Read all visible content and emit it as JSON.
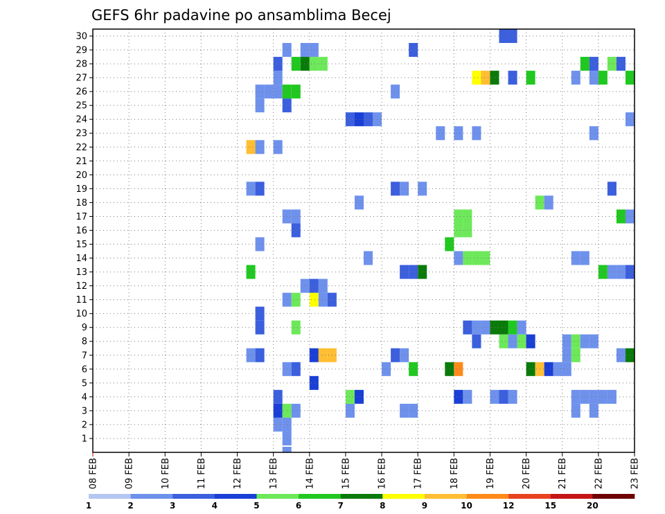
{
  "chart_data": {
    "type": "heatmap",
    "title": "GEFS 6hr padavine po ansamblima Becej",
    "xlabel": "",
    "ylabel": "",
    "x_ticks": [
      "08 FEB",
      "09 FEB",
      "10 FEB",
      "11 FEB",
      "12 FEB",
      "13 FEB",
      "14 FEB",
      "15 FEB",
      "16 FEB",
      "17 FEB",
      "18 FEB",
      "19 FEB",
      "20 FEB",
      "21 FEB",
      "22 FEB",
      "23 FEB"
    ],
    "x_range_days": [
      0,
      15
    ],
    "y_ticks": [
      "1",
      "2",
      "3",
      "4",
      "5",
      "6",
      "7",
      "8",
      "9",
      "10",
      "11",
      "12",
      "13",
      "14",
      "15",
      "16",
      "17",
      "18",
      "19",
      "20",
      "21",
      "22",
      "23",
      "24",
      "25",
      "26",
      "27",
      "28",
      "29",
      "30"
    ],
    "y_range": [
      0,
      30
    ],
    "grid": true,
    "legend": "bottom",
    "colorbar": {
      "colors": [
        "#b4c6f2",
        "#6e91ec",
        "#3b5fdd",
        "#1a3fd6",
        "#6de85a",
        "#20c820",
        "#0a7a0a",
        "#ffff00",
        "#ffbe33",
        "#ff8a1a",
        "#e8421e",
        "#c41616",
        "#6e0000"
      ],
      "labels": [
        "1",
        "2",
        "3",
        "4",
        "5",
        "6",
        "7",
        "8",
        "9",
        "10",
        "12",
        "15",
        "20"
      ]
    },
    "cells": [
      [
        5.25,
        0,
        1
      ],
      [
        5.0,
        1,
        1
      ],
      [
        5.25,
        1,
        1
      ],
      [
        5.0,
        2,
        3
      ],
      [
        5.25,
        2,
        4
      ],
      [
        5.5,
        2,
        1
      ],
      [
        7.0,
        2,
        1
      ],
      [
        8.5,
        2,
        1
      ],
      [
        8.75,
        2,
        1
      ],
      [
        5.0,
        3,
        2
      ],
      [
        7.0,
        3,
        4
      ],
      [
        7.25,
        3,
        3
      ],
      [
        10.0,
        3,
        3
      ],
      [
        10.25,
        3,
        1
      ],
      [
        11.0,
        3,
        1
      ],
      [
        11.25,
        3,
        2
      ],
      [
        11.5,
        3,
        1
      ],
      [
        13.25,
        3,
        1
      ],
      [
        13.5,
        3,
        1
      ],
      [
        13.75,
        3,
        1
      ],
      [
        14.0,
        3,
        1
      ],
      [
        14.25,
        3,
        1
      ],
      [
        13.25,
        2,
        1
      ],
      [
        13.75,
        2,
        1
      ],
      [
        6.0,
        4,
        3
      ],
      [
        5.25,
        5,
        1
      ],
      [
        5.5,
        5,
        2
      ],
      [
        8.0,
        5,
        1
      ],
      [
        8.75,
        5,
        5
      ],
      [
        9.75,
        5,
        6
      ],
      [
        10.0,
        5,
        9
      ],
      [
        12.0,
        5,
        6
      ],
      [
        12.25,
        5,
        8
      ],
      [
        12.5,
        5,
        3
      ],
      [
        12.75,
        5,
        1
      ],
      [
        13.0,
        5,
        1
      ],
      [
        4.25,
        6,
        1
      ],
      [
        4.5,
        6,
        2
      ],
      [
        6.0,
        6,
        3
      ],
      [
        6.25,
        6,
        8
      ],
      [
        6.5,
        6,
        8
      ],
      [
        8.25,
        6,
        2
      ],
      [
        8.5,
        6,
        1
      ],
      [
        13.0,
        6,
        1
      ],
      [
        13.25,
        6,
        4
      ],
      [
        14.5,
        6,
        1
      ],
      [
        14.75,
        6,
        6
      ],
      [
        10.5,
        7,
        2
      ],
      [
        11.25,
        7,
        4
      ],
      [
        11.5,
        7,
        1
      ],
      [
        11.75,
        7,
        4
      ],
      [
        12.0,
        7,
        3
      ],
      [
        13.0,
        7,
        1
      ],
      [
        13.25,
        7,
        4
      ],
      [
        13.5,
        7,
        1
      ],
      [
        13.75,
        7,
        1
      ],
      [
        4.5,
        8,
        2
      ],
      [
        4.5,
        9,
        2
      ],
      [
        5.5,
        8,
        4
      ],
      [
        10.25,
        8,
        2
      ],
      [
        10.5,
        8,
        1
      ],
      [
        10.75,
        8,
        1
      ],
      [
        11.0,
        8,
        6
      ],
      [
        11.25,
        8,
        6
      ],
      [
        11.5,
        8,
        5
      ],
      [
        11.75,
        8,
        1
      ],
      [
        5.25,
        10,
        1
      ],
      [
        5.5,
        10,
        4
      ],
      [
        6.0,
        10,
        7
      ],
      [
        6.25,
        10,
        1
      ],
      [
        6.5,
        10,
        2
      ],
      [
        5.75,
        11,
        1
      ],
      [
        6.0,
        11,
        2
      ],
      [
        6.25,
        11,
        1
      ],
      [
        4.25,
        12,
        5
      ],
      [
        8.5,
        12,
        2
      ],
      [
        8.75,
        12,
        2
      ],
      [
        9.0,
        12,
        6
      ],
      [
        14.0,
        12,
        5
      ],
      [
        14.25,
        12,
        1
      ],
      [
        14.5,
        12,
        1
      ],
      [
        14.75,
        12,
        2
      ],
      [
        10.0,
        13,
        1
      ],
      [
        10.25,
        13,
        4
      ],
      [
        10.5,
        13,
        4
      ],
      [
        10.75,
        13,
        4
      ],
      [
        7.5,
        13,
        1
      ],
      [
        13.25,
        13,
        1
      ],
      [
        13.5,
        13,
        1
      ],
      [
        4.5,
        14,
        1
      ],
      [
        9.75,
        14,
        5
      ],
      [
        10.0,
        15,
        4
      ],
      [
        10.25,
        15,
        4
      ],
      [
        5.5,
        15,
        2
      ],
      [
        5.25,
        16,
        1
      ],
      [
        5.5,
        16,
        1
      ],
      [
        10.0,
        16,
        4
      ],
      [
        10.25,
        16,
        4
      ],
      [
        14.5,
        16,
        5
      ],
      [
        14.75,
        16,
        1
      ],
      [
        7.25,
        17,
        1
      ],
      [
        12.25,
        17,
        4
      ],
      [
        12.5,
        17,
        1
      ],
      [
        4.25,
        18,
        1
      ],
      [
        4.5,
        18,
        2
      ],
      [
        8.25,
        18,
        2
      ],
      [
        8.5,
        18,
        1
      ],
      [
        9.0,
        18,
        1
      ],
      [
        14.25,
        18,
        2
      ],
      [
        4.25,
        21,
        8
      ],
      [
        4.5,
        21,
        1
      ],
      [
        5.0,
        21,
        1
      ],
      [
        9.5,
        22,
        1
      ],
      [
        10.0,
        22,
        1
      ],
      [
        10.5,
        22,
        1
      ],
      [
        13.75,
        22,
        1
      ],
      [
        7.0,
        23,
        2
      ],
      [
        7.25,
        23,
        3
      ],
      [
        7.5,
        23,
        2
      ],
      [
        7.75,
        23,
        1
      ],
      [
        14.75,
        23,
        1
      ],
      [
        4.5,
        24,
        1
      ],
      [
        5.25,
        24,
        2
      ],
      [
        4.5,
        25,
        1
      ],
      [
        4.75,
        25,
        1
      ],
      [
        5.0,
        25,
        1
      ],
      [
        5.25,
        25,
        5
      ],
      [
        5.5,
        25,
        5
      ],
      [
        8.25,
        25,
        1
      ],
      [
        5.0,
        26,
        1
      ],
      [
        10.5,
        26,
        7
      ],
      [
        10.75,
        26,
        8
      ],
      [
        11.0,
        26,
        6
      ],
      [
        11.5,
        26,
        2
      ],
      [
        12.0,
        26,
        5
      ],
      [
        13.25,
        26,
        1
      ],
      [
        13.75,
        26,
        1
      ],
      [
        14.0,
        26,
        5
      ],
      [
        14.75,
        26,
        5
      ],
      [
        5.0,
        27,
        2
      ],
      [
        5.5,
        27,
        5
      ],
      [
        5.75,
        27,
        6
      ],
      [
        6.0,
        27,
        4
      ],
      [
        6.25,
        27,
        4
      ],
      [
        13.5,
        27,
        5
      ],
      [
        13.75,
        27,
        2
      ],
      [
        14.25,
        27,
        4
      ],
      [
        14.5,
        27,
        2
      ],
      [
        5.25,
        28,
        1
      ],
      [
        5.75,
        28,
        1
      ],
      [
        6.0,
        28,
        1
      ],
      [
        8.75,
        28,
        2
      ],
      [
        11.25,
        29,
        2
      ],
      [
        11.5,
        29,
        2
      ],
      [
        5.25,
        -1,
        1
      ]
    ]
  }
}
